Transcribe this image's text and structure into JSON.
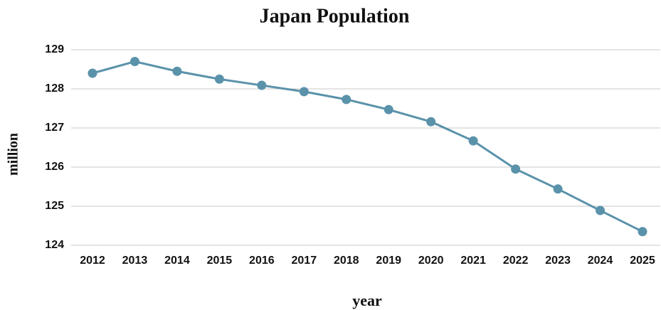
{
  "chart_data": {
    "type": "line",
    "title": "Japan Population",
    "xlabel": "year",
    "ylabel": "million",
    "categories": [
      "2012",
      "2013",
      "2014",
      "2015",
      "2016",
      "2017",
      "2018",
      "2019",
      "2020",
      "2021",
      "2022",
      "2023",
      "2024",
      "2025"
    ],
    "series": [
      {
        "name": "Japan Population",
        "color": "#5a92aa",
        "values": [
          128.4,
          128.7,
          128.45,
          128.25,
          128.09,
          127.93,
          127.73,
          127.47,
          127.16,
          126.67,
          125.95,
          125.44,
          124.89,
          124.35
        ]
      }
    ],
    "ylim": [
      124,
      129
    ],
    "yticks": [
      124,
      125,
      126,
      127,
      128,
      129
    ],
    "grid": true
  }
}
